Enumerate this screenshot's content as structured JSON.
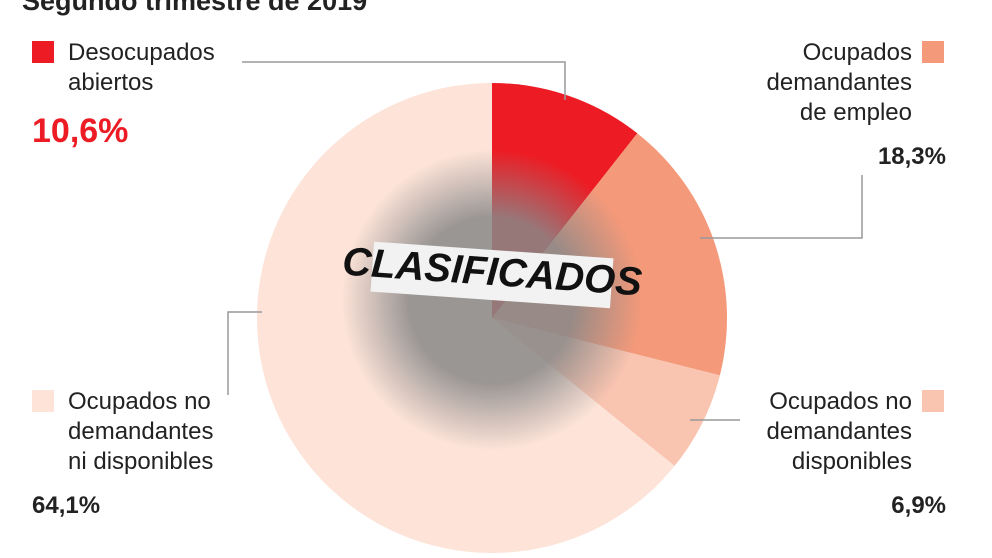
{
  "chart_data": {
    "type": "pie",
    "title": "Segundo trimestre de 2019",
    "categories": [
      "Desocupados abiertos",
      "Ocupados demandantes de empleo",
      "Ocupados no demandantes disponibles",
      "Ocupados no demandantes ni disponibles"
    ],
    "values": [
      10.6,
      18.3,
      6.9,
      64.1
    ],
    "value_labels": [
      "10,6%",
      "18,3%",
      "6,9%",
      "64,1%"
    ],
    "colors": [
      "#ed1c24",
      "#f4997a",
      "#f9c4b0",
      "#fde3d8"
    ],
    "center_image_text": "CLASIFICADOS"
  }
}
